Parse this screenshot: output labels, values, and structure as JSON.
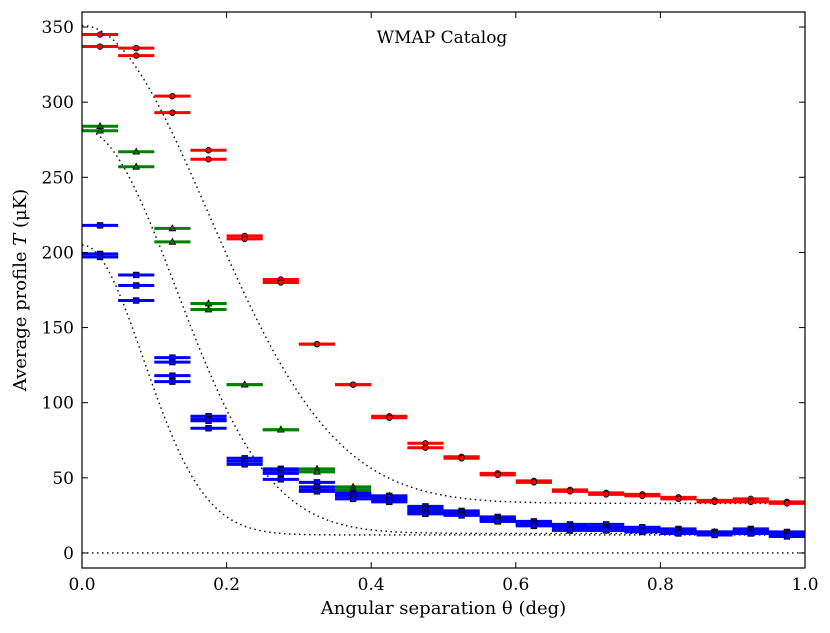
{
  "chart_data": {
    "type": "scatter",
    "title": "WMAP Catalog",
    "xlabel": "Angular separation θ (deg)",
    "ylabel_main": "Average profile ",
    "ylabel_italic": "T",
    "ylabel_unit": " (μK)",
    "xlim": [
      0.0,
      1.0
    ],
    "ylim": [
      -10,
      360
    ],
    "xticks": [
      0.0,
      0.2,
      0.4,
      0.6,
      0.8,
      1.0
    ],
    "xtick_labels": [
      "0.0",
      "0.2",
      "0.4",
      "0.6",
      "0.8",
      "1.0"
    ],
    "yticks": [
      0,
      50,
      100,
      150,
      200,
      250,
      300,
      350
    ],
    "ytick_labels": [
      "0",
      "50",
      "100",
      "150",
      "200",
      "250",
      "300",
      "350"
    ],
    "bin_halfwidth": 0.025,
    "colors": {
      "red": "#ff0000",
      "green": "#008000",
      "blue": "#0000ff",
      "axis": "#000000"
    },
    "series": [
      {
        "name": "red-circles-1",
        "color": "red",
        "marker": "circle",
        "x": [
          0.025,
          0.075,
          0.125,
          0.175,
          0.225,
          0.275,
          0.325,
          0.375,
          0.425,
          0.475,
          0.525,
          0.575,
          0.625,
          0.675,
          0.725,
          0.775,
          0.825,
          0.875,
          0.925,
          0.975
        ],
        "y": [
          345,
          336,
          304,
          268,
          211,
          182,
          139,
          112,
          91,
          73,
          64,
          53,
          48,
          42,
          40,
          39,
          37,
          35,
          36,
          34
        ]
      },
      {
        "name": "red-circles-2",
        "color": "red",
        "marker": "circle",
        "x": [
          0.025,
          0.075,
          0.125,
          0.175,
          0.225,
          0.275,
          0.325,
          0.375,
          0.425,
          0.475,
          0.525,
          0.575,
          0.625,
          0.675,
          0.725,
          0.775,
          0.825,
          0.875,
          0.925,
          0.975
        ],
        "y": [
          337,
          331,
          293,
          262,
          209,
          180,
          139,
          112,
          90,
          70,
          63,
          52,
          47,
          41,
          39,
          38,
          36,
          34,
          34,
          33
        ]
      },
      {
        "name": "green-triangles-1",
        "color": "green",
        "marker": "triangle",
        "x": [
          0.025,
          0.075,
          0.125,
          0.175,
          0.225,
          0.275,
          0.325,
          0.375,
          0.425,
          0.475,
          0.525,
          0.575,
          0.625,
          0.675,
          0.725,
          0.775,
          0.825,
          0.875,
          0.925,
          0.975
        ],
        "y": [
          284,
          267,
          216,
          166,
          112,
          82,
          56,
          44,
          38,
          30,
          27,
          23,
          20,
          18,
          17,
          16,
          15,
          14,
          14,
          13
        ]
      },
      {
        "name": "green-triangles-2",
        "color": "green",
        "marker": "triangle",
        "x": [
          0.025,
          0.075,
          0.125,
          0.175,
          0.225,
          0.275,
          0.325,
          0.375,
          0.425,
          0.475,
          0.525,
          0.575,
          0.625,
          0.675,
          0.725,
          0.775,
          0.825,
          0.875,
          0.925,
          0.975
        ],
        "y": [
          281,
          257,
          207,
          162,
          112,
          82,
          54,
          42,
          36,
          28,
          26,
          21,
          19,
          17,
          15,
          15,
          14,
          13,
          13,
          12
        ]
      },
      {
        "name": "blue-squares-1",
        "color": "blue",
        "marker": "square",
        "x": [
          0.025,
          0.075,
          0.125,
          0.175,
          0.225,
          0.275,
          0.325,
          0.375,
          0.425,
          0.475,
          0.525,
          0.575,
          0.625,
          0.675,
          0.725,
          0.775,
          0.825,
          0.875,
          0.925,
          0.975
        ],
        "y": [
          218,
          185,
          130,
          91,
          63,
          56,
          47,
          40,
          38,
          31,
          28,
          24,
          21,
          19,
          19,
          17,
          16,
          14,
          16,
          14
        ]
      },
      {
        "name": "blue-squares-2",
        "color": "blue",
        "marker": "square",
        "x": [
          0.025,
          0.075,
          0.125,
          0.175,
          0.225,
          0.275,
          0.325,
          0.375,
          0.425,
          0.475,
          0.525,
          0.575,
          0.625,
          0.675,
          0.725,
          0.775,
          0.825,
          0.875,
          0.925,
          0.975
        ],
        "y": [
          199,
          178,
          127,
          89,
          61,
          55,
          44,
          39,
          37,
          29,
          27,
          23,
          20,
          18,
          17,
          17,
          15,
          13,
          15,
          13
        ]
      },
      {
        "name": "blue-squares-3",
        "color": "blue",
        "marker": "square",
        "x": [
          0.025,
          0.075,
          0.125,
          0.175,
          0.225,
          0.275,
          0.325,
          0.375,
          0.425,
          0.475,
          0.525,
          0.575,
          0.625,
          0.675,
          0.725,
          0.775,
          0.825,
          0.875,
          0.925,
          0.975
        ],
        "y": [
          197,
          168,
          118,
          88,
          59,
          53,
          42,
          38,
          35,
          27,
          26,
          22,
          19,
          16,
          16,
          15,
          14,
          13,
          14,
          12
        ]
      },
      {
        "name": "blue-squares-4",
        "color": "blue",
        "marker": "square",
        "x": [
          0.125,
          0.175,
          0.275,
          0.325,
          0.375,
          0.425,
          0.475,
          0.525,
          0.575,
          0.625,
          0.675,
          0.725,
          0.775,
          0.825,
          0.875,
          0.925,
          0.975
        ],
        "y": [
          114,
          83,
          49,
          41,
          36,
          34,
          26,
          25,
          21,
          18,
          15,
          15,
          14,
          13,
          12,
          13,
          11
        ]
      }
    ],
    "model_curves": [
      {
        "name": "red-model",
        "type": "gaussian",
        "amplitude": 318,
        "sigma": 0.175,
        "offset": 33
      },
      {
        "name": "green-model",
        "type": "gaussian",
        "amplitude": 269,
        "sigma": 0.13,
        "offset": 13
      },
      {
        "name": "blue-model",
        "type": "gaussian",
        "amplitude": 193,
        "sigma": 0.085,
        "offset": 12
      },
      {
        "name": "zero-line",
        "type": "constant",
        "value": 0
      }
    ]
  }
}
